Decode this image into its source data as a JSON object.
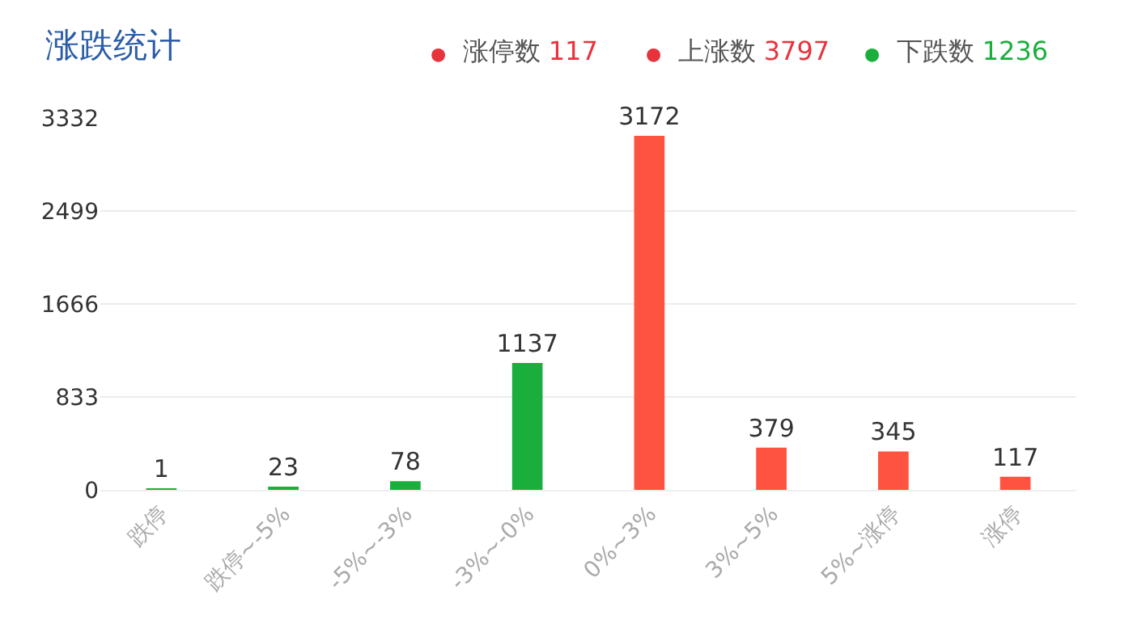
{
  "chart_data": {
    "type": "bar",
    "title": "涨跌统计",
    "annotations": [
      "● 涨停数 117",
      "● 上涨数 3797",
      "● 下跌数 1236"
    ],
    "categories": [
      "跌停",
      "跌停~-5%",
      "-5%~-3%",
      "-3%~-0%",
      "0%~3%",
      "3%~5%",
      "5%~涨停",
      "涨停"
    ],
    "values": [
      1,
      23,
      78,
      1137,
      3172,
      379,
      345,
      117
    ],
    "colors": [
      "#1aaf3d",
      "#1aaf3d",
      "#1aaf3d",
      "#1aaf3d",
      "#fe5340",
      "#fe5340",
      "#fe5340",
      "#fe5340"
    ],
    "ylim": [
      0,
      3332
    ],
    "yticks": [
      0,
      833,
      1666,
      2499,
      3332
    ],
    "grid": "y",
    "data_labels": true
  }
}
